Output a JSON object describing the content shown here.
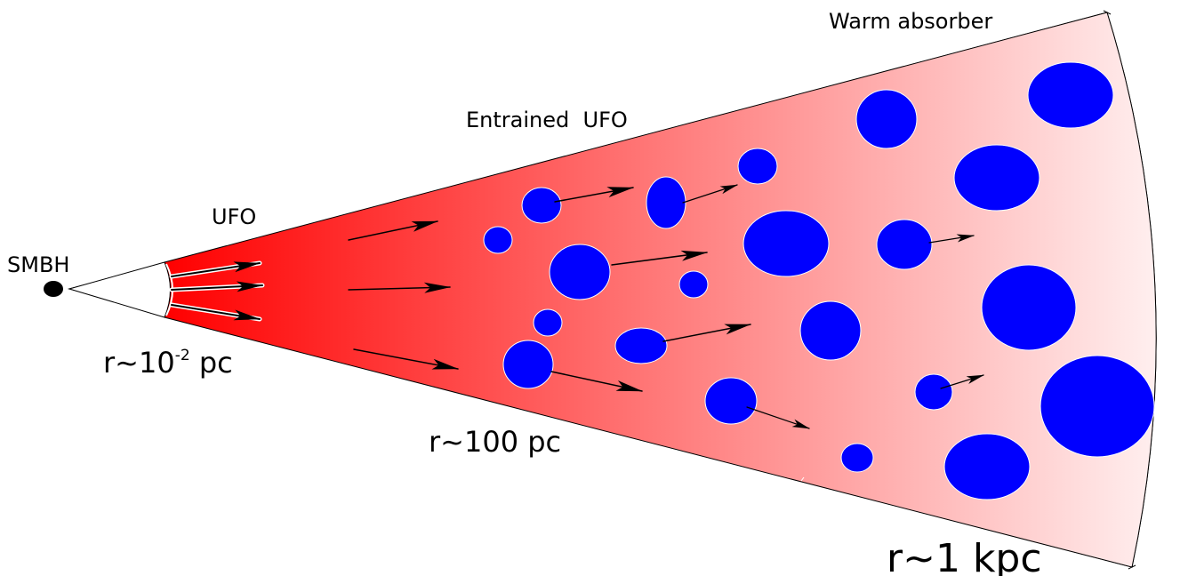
{
  "labels": {
    "smbh": "SMBH",
    "ufo": "UFO",
    "entrained_ufo": "Entrained  UFO",
    "warm_absorber": "Warm absorber",
    "r_inner_base": "r~10",
    "r_inner_exp": "-2",
    "r_inner_unit": " pc",
    "r_mid": "r~100 pc",
    "r_outer": "r~1 kpc"
  },
  "colors": {
    "outflow_inner": "#ff0000",
    "outflow_mid": "#ff6f6f",
    "outflow_outer": "#fff2f2",
    "clump": "#0000ff",
    "black_hole": "#000000",
    "outline": "#000000",
    "arrow": "#000000"
  }
}
